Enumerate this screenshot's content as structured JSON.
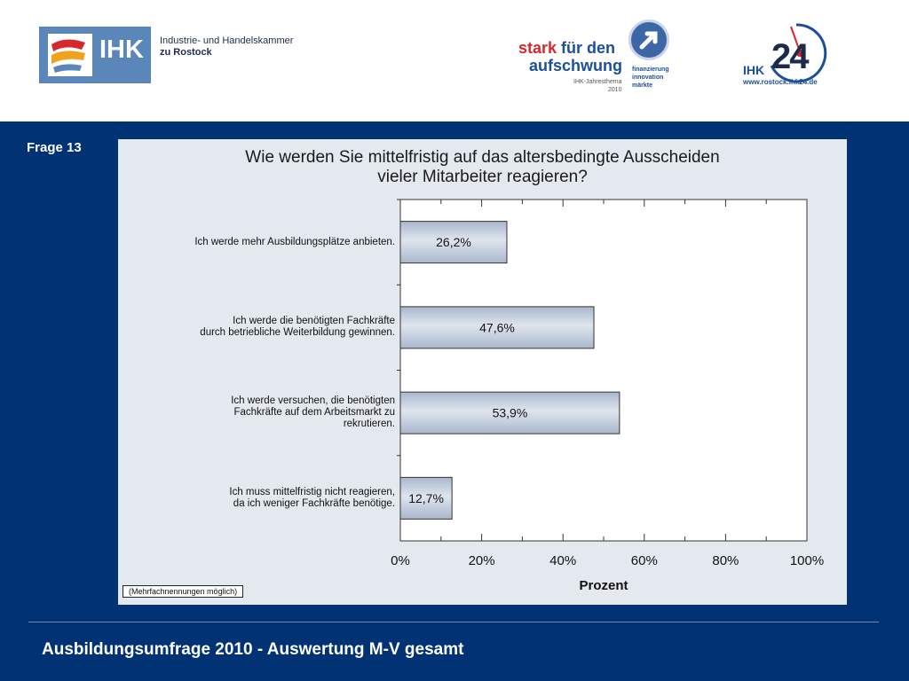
{
  "header": {
    "ihk_logo_text": "IHK",
    "chamber_line1": "Industrie- und Handelskammer",
    "chamber_line2": "zu Rostock",
    "campaign": {
      "word1": "stark",
      "word2": "für den",
      "word3": "aufschwung",
      "sub1": "IHK-Jahresthema",
      "sub2": "2010",
      "tag1": "finanzierung",
      "tag2": "innovation",
      "tag3": "märkte"
    },
    "ihk24": {
      "prefix": "IHK",
      "number": "24",
      "url": "www.rostock.ihk24.de"
    }
  },
  "slide": {
    "question_label": "Frage 13",
    "footer": "Ausbildungsumfrage 2010 - Auswertung M-V gesamt",
    "note": "(Mehrfachnennungen möglich)"
  },
  "colors": {
    "page_bg": "#003274",
    "chart_bg": "#e4e8ef",
    "bar_fill": "#a9b7cc",
    "bar_highlight": "#dfe5ee"
  },
  "chart_data": {
    "type": "bar",
    "orientation": "horizontal",
    "title_line1": "Wie werden Sie mittelfristig auf das altersbedingte Ausscheiden",
    "title_line2": "vieler Mitarbeiter reagieren?",
    "xlabel": "Prozent",
    "ylabel": "",
    "xlim": [
      0,
      100
    ],
    "xticks": [
      "0%",
      "20%",
      "40%",
      "60%",
      "80%",
      "100%"
    ],
    "categories": [
      [
        "Ich werde mehr Ausbildungsplätze anbieten."
      ],
      [
        "Ich werde die benötigten Fachkräfte",
        "durch betriebliche Weiterbildung gewinnen."
      ],
      [
        "Ich werde versuchen, die benötigten",
        "Fachkräfte auf dem Arbeitsmarkt zu",
        "rekrutieren."
      ],
      [
        "Ich muss mittelfristig nicht reagieren,",
        "da ich weniger Fachkräfte benötige."
      ]
    ],
    "values": [
      26.2,
      47.6,
      53.9,
      12.7
    ],
    "value_labels": [
      "26,2%",
      "47,6%",
      "53,9%",
      "12,7%"
    ],
    "grid": false,
    "legend": "none"
  }
}
